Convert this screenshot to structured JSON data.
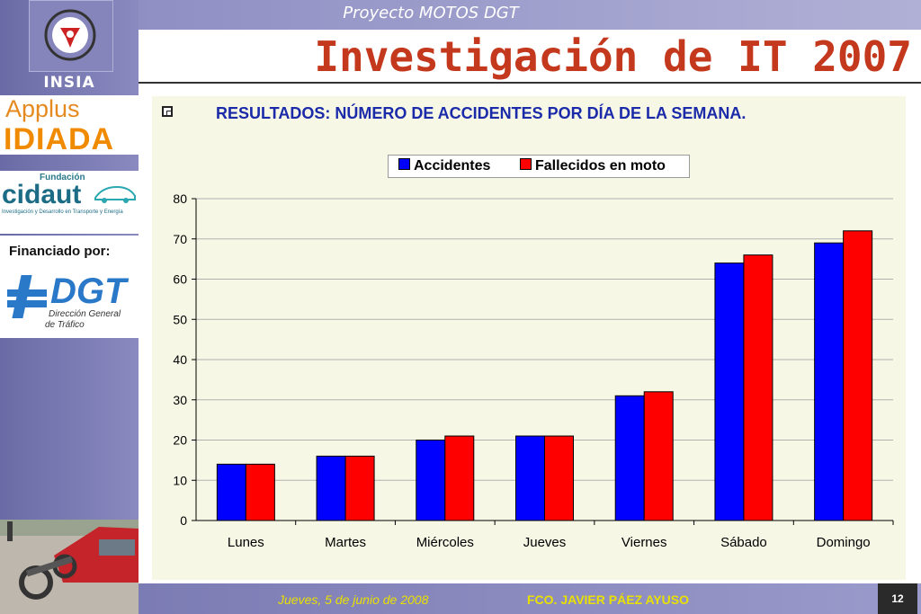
{
  "header": {
    "project": "Proyecto MOTOS DGT",
    "title": "Investigación de IT 2007"
  },
  "sidebar": {
    "insia": "INSIA",
    "applus_top": "Applus",
    "applus_bottom": "IDIADA",
    "cidaut_fundacion": "Fundación",
    "cidaut_name": "cidaut",
    "cidaut_tagline": "Investigación y Desarrollo en Transporte y Energía",
    "financiado": "Financiado por:",
    "dgt_mark": "DGT",
    "dgt_line1": "Dirección General",
    "dgt_line2": "de Tráfico"
  },
  "subtitle": "RESULTADOS: NÚMERO DE ACCIDENTES POR DÍA DE LA SEMANA.",
  "footer": {
    "date": "Jueves, 5 de junio de 2008",
    "author": "FCO. JAVIER PÁEZ AYUSO",
    "page": "12"
  },
  "colors": {
    "accidentes": "#0000ff",
    "fallecidos": "#ff0000",
    "title": "#c4391d",
    "subtitle": "#1a2aa8"
  },
  "chart_data": {
    "type": "bar",
    "title": "",
    "xlabel": "",
    "ylabel": "",
    "categories": [
      "Lunes",
      "Martes",
      "Miércoles",
      "Jueves",
      "Viernes",
      "Sábado",
      "Domingo"
    ],
    "series": [
      {
        "name": "Accidentes",
        "values": [
          14,
          16,
          20,
          21,
          31,
          64,
          69
        ]
      },
      {
        "name": "Fallecidos en moto",
        "values": [
          14,
          16,
          21,
          21,
          32,
          66,
          72
        ]
      }
    ],
    "ylim": [
      0,
      80
    ],
    "yticks": [
      0,
      10,
      20,
      30,
      40,
      50,
      60,
      70,
      80
    ],
    "grid": true,
    "legend": "top"
  }
}
